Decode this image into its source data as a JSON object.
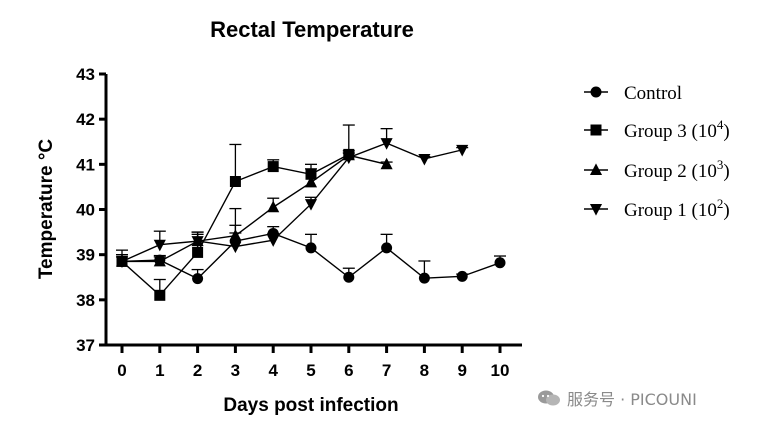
{
  "chart_data": {
    "type": "line",
    "title": "Rectal Temperature",
    "xlabel": "Days post infection",
    "ylabel": "Temperature °C",
    "xlim": [
      0,
      10
    ],
    "ylim": [
      37,
      43
    ],
    "xticks": [
      0,
      1,
      2,
      3,
      4,
      5,
      6,
      7,
      8,
      9,
      10
    ],
    "yticks": [
      37,
      38,
      39,
      40,
      41,
      42,
      43
    ],
    "grid": false,
    "legend_position": "right",
    "series": [
      {
        "name": "Control",
        "marker": "circle",
        "x": [
          0,
          1,
          2,
          3,
          4,
          5,
          6,
          7,
          8,
          9,
          10
        ],
        "y": [
          38.85,
          38.88,
          38.47,
          39.3,
          39.47,
          39.15,
          38.5,
          39.15,
          38.48,
          38.52,
          38.82
        ],
        "error": [
          0.25,
          0.1,
          0.2,
          0.35,
          0.15,
          0.3,
          0.2,
          0.3,
          0.38,
          0.05,
          0.15
        ]
      },
      {
        "name": "Group 3 (10⁴)",
        "marker": "square",
        "x": [
          0,
          1,
          2,
          3,
          4,
          5,
          6
        ],
        "y": [
          38.85,
          38.1,
          39.05,
          40.62,
          40.95,
          40.78,
          41.22
        ],
        "error": [
          0.15,
          0.35,
          0.45,
          0.82,
          0.15,
          0.22,
          0.65
        ]
      },
      {
        "name": "Group 2 (10³)",
        "marker": "triangle-up",
        "x": [
          0,
          1,
          2,
          3,
          4,
          5,
          6,
          7
        ],
        "y": [
          38.85,
          38.85,
          39.3,
          39.42,
          40.05,
          40.6,
          41.2,
          41.0
        ],
        "error": [
          0.1,
          0.1,
          0.15,
          0.6,
          0.2,
          0.3,
          0.1,
          0.05
        ]
      },
      {
        "name": "Group 1 (10²)",
        "marker": "triangle-down",
        "x": [
          0,
          1,
          2,
          3,
          4,
          5,
          6,
          7,
          8,
          9
        ],
        "y": [
          38.85,
          39.22,
          39.3,
          39.18,
          39.32,
          40.12,
          41.15,
          41.47,
          41.12,
          41.32
        ],
        "error": [
          0.15,
          0.3,
          0.2,
          0.3,
          0.15,
          0.15,
          0.1,
          0.32,
          0.05,
          0.05
        ]
      }
    ]
  },
  "legend": [
    {
      "name": "Control",
      "base": "Control",
      "sup": ""
    },
    {
      "name": "Group 3 (10⁴)",
      "base": "Group 3 (10",
      "sup": "4"
    },
    {
      "name": "Group 2 (10³)",
      "base": "Group 2 (10",
      "sup": "3"
    },
    {
      "name": "Group 1 (10²)",
      "base": "Group 1 (10",
      "sup": "2"
    }
  ],
  "watermark": {
    "text": "服务号 · PICOUNI",
    "icon": "chat-bubbles-icon",
    "color": "#8a8a8a"
  }
}
